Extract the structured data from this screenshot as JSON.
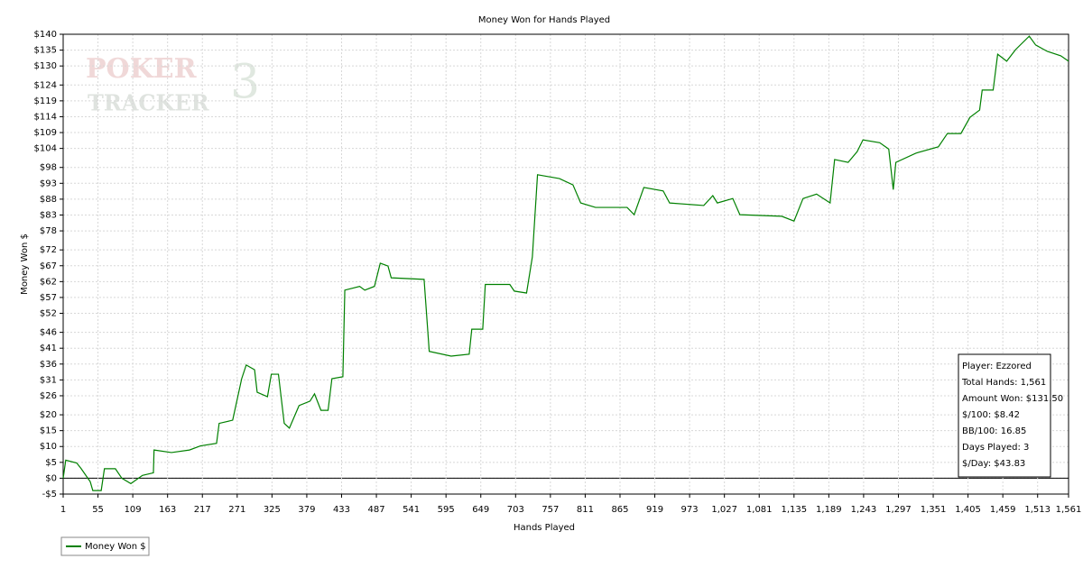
{
  "chart_data": {
    "type": "line",
    "title": "Money Won for Hands Played",
    "xlabel": "Hands Played",
    "ylabel": "Money Won $",
    "watermark": [
      "POKER",
      "TRACKER",
      "3"
    ],
    "series": [
      {
        "name": "Money Won $",
        "color": "#008000",
        "x": [
          1,
          5,
          22,
          29,
          43,
          47,
          60,
          65,
          82,
          92,
          106,
          124,
          141,
          142,
          169,
          197,
          214,
          239,
          243,
          264,
          278,
          285,
          298,
          302,
          318,
          324,
          335,
          344,
          352,
          367,
          384,
          391,
          401,
          412,
          418,
          435,
          438,
          461,
          469,
          484,
          493,
          505,
          510,
          561,
          569,
          603,
          631,
          635,
          652,
          656,
          694,
          701,
          720,
          729,
          737,
          771,
          792,
          804,
          827,
          876,
          887,
          902,
          932,
          942,
          995,
          1009,
          1016,
          1040,
          1051,
          1116,
          1135,
          1149,
          1170,
          1191,
          1198,
          1219,
          1233,
          1242,
          1268,
          1282,
          1289,
          1293,
          1324,
          1359,
          1373,
          1394,
          1408,
          1423,
          1427,
          1444,
          1451,
          1465,
          1479,
          1500,
          1510,
          1528,
          1549,
          1561
        ],
        "values": [
          0,
          5.7,
          4.8,
          3,
          -1.1,
          -3.9,
          -3.9,
          3,
          3,
          0,
          -1.7,
          0.9,
          1.7,
          8.9,
          8.1,
          8.9,
          10.2,
          11,
          17.3,
          18.3,
          31.4,
          35.7,
          34.2,
          27.1,
          25.7,
          32.8,
          32.8,
          17.3,
          15.8,
          22.9,
          24.3,
          26.6,
          21.4,
          21.4,
          31.4,
          32,
          59.3,
          60.5,
          59.3,
          60.5,
          67.8,
          66.9,
          63.2,
          62.7,
          40,
          38.5,
          39.1,
          47,
          47,
          61.1,
          61.1,
          59,
          58.4,
          69.8,
          95.7,
          94.5,
          92.5,
          86.8,
          85.4,
          85.4,
          83.1,
          91.7,
          90.6,
          86.8,
          86,
          89.1,
          86.8,
          88.2,
          83.1,
          82.6,
          81.1,
          88.2,
          89.6,
          86.8,
          100.5,
          99.6,
          103,
          106.7,
          105.8,
          103.8,
          91,
          99.6,
          102.5,
          104.5,
          108.7,
          108.7,
          113.8,
          116.1,
          122.4,
          122.4,
          133.7,
          131.5,
          135.2,
          139.4,
          136.6,
          134.6,
          133.2,
          131.5
        ]
      }
    ],
    "xlim": [
      1,
      1561
    ],
    "xticks": [
      1,
      55,
      109,
      163,
      217,
      271,
      325,
      379,
      433,
      487,
      541,
      595,
      649,
      703,
      757,
      811,
      865,
      919,
      973,
      {
        "value": 1027,
        "label": "1,027"
      },
      {
        "value": 1081,
        "label": "1,081"
      },
      {
        "value": 1135,
        "label": "1,135"
      },
      {
        "value": 1189,
        "label": "1,189"
      },
      {
        "value": 1243,
        "label": "1,243"
      },
      {
        "value": 1297,
        "label": "1,297"
      },
      {
        "value": 1351,
        "label": "1,351"
      },
      {
        "value": 1405,
        "label": "1,405"
      },
      {
        "value": 1459,
        "label": "1,459"
      },
      {
        "value": 1513,
        "label": "1,513"
      },
      {
        "value": 1561,
        "label": "1,561"
      }
    ],
    "ylim": [
      -5,
      140
    ],
    "yticks": [
      {
        "value": -5,
        "label": "-$5"
      },
      {
        "value": 0,
        "label": "$0"
      },
      {
        "value": 5,
        "label": "$5"
      },
      {
        "value": 10,
        "label": "$10"
      },
      {
        "value": 15,
        "label": "$15"
      },
      {
        "value": 20,
        "label": "$20"
      },
      {
        "value": 26,
        "label": "$26"
      },
      {
        "value": 31,
        "label": "$31"
      },
      {
        "value": 36,
        "label": "$36"
      },
      {
        "value": 41,
        "label": "$41"
      },
      {
        "value": 46,
        "label": "$46"
      },
      {
        "value": 52,
        "label": "$52"
      },
      {
        "value": 57,
        "label": "$57"
      },
      {
        "value": 62,
        "label": "$62"
      },
      {
        "value": 67,
        "label": "$67"
      },
      {
        "value": 72,
        "label": "$72"
      },
      {
        "value": 78,
        "label": "$78"
      },
      {
        "value": 83,
        "label": "$83"
      },
      {
        "value": 88,
        "label": "$88"
      },
      {
        "value": 93,
        "label": "$93"
      },
      {
        "value": 98,
        "label": "$98"
      },
      {
        "value": 104,
        "label": "$104"
      },
      {
        "value": 109,
        "label": "$109"
      },
      {
        "value": 114,
        "label": "$114"
      },
      {
        "value": 119,
        "label": "$119"
      },
      {
        "value": 124,
        "label": "$124"
      },
      {
        "value": 130,
        "label": "$130"
      },
      {
        "value": 135,
        "label": "$135"
      },
      {
        "value": 140,
        "label": "$140"
      }
    ],
    "grid": true,
    "stats": [
      "Player: Ezzored",
      "Total Hands: 1,561",
      "Amount Won: $131.50",
      "$/100: $8.42",
      "BB/100: 16.85",
      "Days Played: 3",
      "$/Day: $43.83"
    ]
  }
}
